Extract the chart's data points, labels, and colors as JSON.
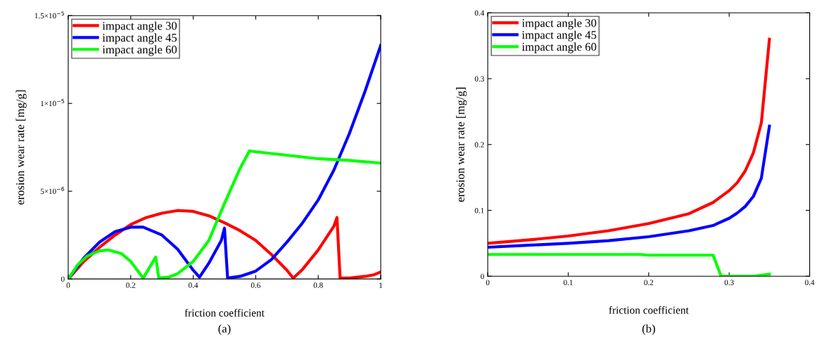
{
  "chart_data": [
    {
      "type": "line",
      "xlabel": "friction coefficient",
      "ylabel": "erosion wear rate [mg/g]",
      "annotations": [
        "(a)"
      ],
      "legend": "top left",
      "grid": false,
      "line_style": "solid",
      "marker": "none",
      "xlim": [
        0,
        1
      ],
      "xticks": [
        0,
        0.2,
        0.4,
        0.6,
        0.8,
        1
      ],
      "ylim": [
        0,
        1.5e-05
      ],
      "yticks": [
        0,
        {
          "value": 5e-06,
          "label": "5×10$^{−6}$"
        },
        {
          "value": 1e-05,
          "label": "1×10$^{−5}$"
        },
        {
          "value": 1.5e-05,
          "label": "1.5×10$^{−5}$"
        }
      ],
      "series": [
        {
          "name": "impact angle 30",
          "color": "#ff0000",
          "x": [
            0,
            0.05,
            0.1,
            0.15,
            0.2,
            0.25,
            0.3,
            0.35,
            0.4,
            0.45,
            0.5,
            0.55,
            0.6,
            0.65,
            0.7,
            0.72,
            0.75,
            0.8,
            0.85,
            0.86,
            0.87,
            0.9,
            0.95,
            0.98,
            1.0
          ],
          "values": [
            0,
            1e-06,
            1.8e-06,
            2.5e-06,
            3.1e-06,
            3.5e-06,
            3.75e-06,
            3.9e-06,
            3.85e-06,
            3.6e-06,
            3.2e-06,
            2.75e-06,
            2.2e-06,
            1.4e-06,
            5e-07,
            5e-08,
            5.5e-07,
            1.65e-06,
            3e-06,
            3.5e-06,
            5e-08,
            5e-08,
            1.5e-07,
            2.5e-07,
            4e-07
          ]
        },
        {
          "name": "impact angle 45",
          "color": "#0000ff",
          "x": [
            0,
            0.05,
            0.1,
            0.15,
            0.2,
            0.24,
            0.3,
            0.35,
            0.4,
            0.42,
            0.45,
            0.49,
            0.5,
            0.51,
            0.55,
            0.6,
            0.65,
            0.7,
            0.75,
            0.8,
            0.85,
            0.9,
            0.95,
            1.0
          ],
          "values": [
            0,
            1.2e-06,
            2.1e-06,
            2.7e-06,
            2.95e-06,
            2.95e-06,
            2.5e-06,
            1.7e-06,
            5e-07,
            1e-07,
            9e-07,
            2.2e-06,
            2.9e-06,
            5e-08,
            1.5e-07,
            4.5e-07,
            1.1e-06,
            2.1e-06,
            3.2e-06,
            4.5e-06,
            6.2e-06,
            8.3e-06,
            1.07e-05,
            1.33e-05
          ]
        },
        {
          "name": "impact angle 60",
          "color": "#00ff00",
          "x": [
            0,
            0.03,
            0.06,
            0.1,
            0.13,
            0.17,
            0.2,
            0.24,
            0.28,
            0.29,
            0.32,
            0.35,
            0.4,
            0.45,
            0.5,
            0.55,
            0.58,
            0.6,
            0.7,
            0.8,
            0.9,
            1.0
          ],
          "values": [
            0,
            8e-07,
            1.3e-06,
            1.6e-06,
            1.65e-06,
            1.45e-06,
            1e-06,
            5e-08,
            1.25e-06,
            5e-08,
            1e-07,
            3e-07,
            1e-06,
            2.2e-06,
            4.3e-06,
            6.3e-06,
            7.3e-06,
            7.25e-06,
            7.05e-06,
            6.85e-06,
            6.75e-06,
            6.6e-06
          ]
        }
      ]
    },
    {
      "type": "line",
      "xlabel": "friction coefficient",
      "ylabel": "erosion wear rate [mg/g]",
      "annotations": [
        "(b)"
      ],
      "legend": "top left",
      "grid": false,
      "line_style": "solid",
      "marker": "none",
      "xlim": [
        0,
        0.4
      ],
      "xticks": [
        0,
        0.1,
        0.2,
        0.3,
        0.4
      ],
      "ylim": [
        0,
        0.4
      ],
      "yticks": [
        0,
        0.1,
        0.2,
        0.3,
        0.4
      ],
      "series": [
        {
          "name": "impact angle 30",
          "color": "#ff0000",
          "x": [
            0,
            0.05,
            0.1,
            0.15,
            0.2,
            0.25,
            0.28,
            0.3,
            0.31,
            0.32,
            0.33,
            0.34,
            0.35
          ],
          "values": [
            0.05,
            0.055,
            0.061,
            0.069,
            0.08,
            0.095,
            0.112,
            0.13,
            0.142,
            0.16,
            0.187,
            0.233,
            0.36
          ]
        },
        {
          "name": "impact angle 45",
          "color": "#0000ff",
          "x": [
            0,
            0.05,
            0.1,
            0.15,
            0.2,
            0.25,
            0.28,
            0.3,
            0.31,
            0.32,
            0.33,
            0.34,
            0.35
          ],
          "values": [
            0.044,
            0.047,
            0.05,
            0.054,
            0.06,
            0.069,
            0.077,
            0.088,
            0.096,
            0.106,
            0.121,
            0.149,
            0.228
          ]
        },
        {
          "name": "impact angle 60",
          "color": "#00ff00",
          "x": [
            0,
            0.19,
            0.2,
            0.28,
            0.29,
            0.33,
            0.35
          ],
          "values": [
            0.033,
            0.033,
            0.032,
            0.032,
            0.0,
            0.0,
            0.003
          ]
        }
      ]
    }
  ]
}
